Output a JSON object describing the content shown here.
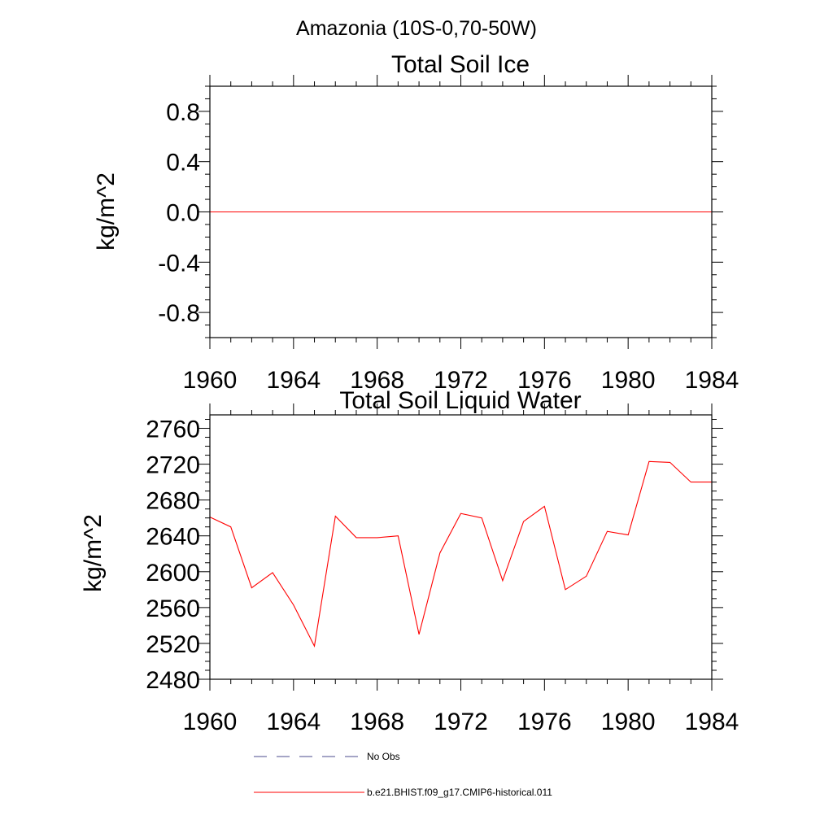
{
  "suptitle": "Amazonia (10S-0,70-50W)",
  "chart_data": [
    {
      "type": "line",
      "title": "Total Soil Ice",
      "xlabel": "",
      "ylabel": "kg/m^2",
      "xlim": [
        1960,
        1984
      ],
      "ylim": [
        -1.0,
        1.0
      ],
      "xticks": [
        1960,
        1964,
        1968,
        1972,
        1976,
        1980,
        1984
      ],
      "yticks": [
        -0.8,
        -0.4,
        0.0,
        0.4,
        0.8
      ],
      "ytick_labels": [
        "-0.8",
        "-0.4",
        "0.0",
        "0.4",
        "0.8"
      ],
      "x": [
        1960,
        1961,
        1962,
        1963,
        1964,
        1965,
        1966,
        1967,
        1968,
        1969,
        1970,
        1971,
        1972,
        1973,
        1974,
        1975,
        1976,
        1977,
        1978,
        1979,
        1980,
        1981,
        1982,
        1983,
        1984
      ],
      "series": [
        {
          "values": [
            0,
            0,
            0,
            0,
            0,
            0,
            0,
            0,
            0,
            0,
            0,
            0,
            0,
            0,
            0,
            0,
            0,
            0,
            0,
            0,
            0,
            0,
            0,
            0,
            0
          ],
          "color": "#ff0000"
        }
      ]
    },
    {
      "type": "line",
      "title": "Total Soil Liquid Water",
      "xlabel": "",
      "ylabel": "kg/m^2",
      "xlim": [
        1960,
        1984
      ],
      "ylim": [
        2480,
        2775
      ],
      "xticks": [
        1960,
        1964,
        1968,
        1972,
        1976,
        1980,
        1984
      ],
      "yticks": [
        2480,
        2520,
        2560,
        2600,
        2640,
        2680,
        2720,
        2760
      ],
      "ytick_labels": [
        "2480",
        "2520",
        "2560",
        "2600",
        "2640",
        "2680",
        "2720",
        "2760"
      ],
      "x": [
        1960,
        1961,
        1962,
        1963,
        1964,
        1965,
        1966,
        1967,
        1968,
        1969,
        1970,
        1971,
        1972,
        1973,
        1974,
        1975,
        1976,
        1977,
        1978,
        1979,
        1980,
        1981,
        1982,
        1983,
        1984
      ],
      "series": [
        {
          "values": [
            2661,
            2650,
            2582,
            2599,
            2563,
            2517,
            2662,
            2638,
            2638,
            2640,
            2530,
            2621,
            2665,
            2660,
            2590,
            2656,
            2673,
            2580,
            2595,
            2645,
            2641,
            2723,
            2722,
            2700,
            2700
          ],
          "color": "#ff0000"
        }
      ]
    }
  ],
  "legend": [
    {
      "label": "No Obs",
      "style": "dashed",
      "color": "#4b4b8c"
    },
    {
      "label": "b.e21.BHIST.f09_g17.CMIP6-historical.011",
      "style": "solid",
      "color": "#ff0000"
    }
  ]
}
